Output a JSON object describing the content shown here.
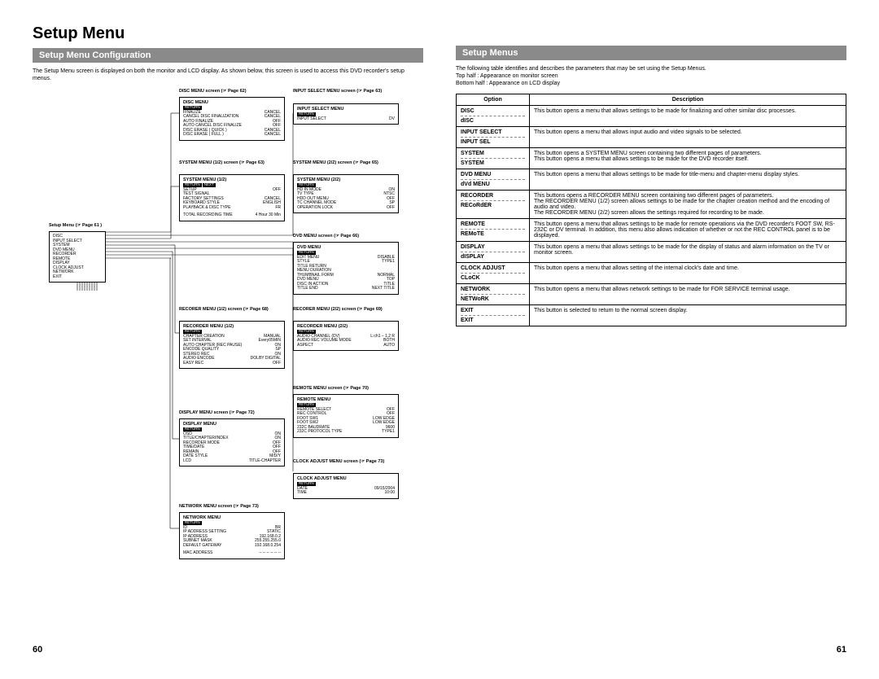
{
  "main_title": "Setup Menu",
  "left": {
    "section": "Setup Menu Configuration",
    "intro": "The Setup Menu screen is displayed on both the monitor and LCD display. As shown below, this screen is used to access this DVD recorder's setup menus.",
    "page_num": "60",
    "labels": {
      "setup": "Setup Menu (☞ Page 61 )",
      "disc": "DISC MENU screen (☞ Page 62)",
      "input_select": "INPUT SELECT MENU screen (☞ Page 63)",
      "system1": "SYSTEM MENU (1/2) screen (☞ Page 63)",
      "system2": "SYSTEM MENU (2/2) screen (☞ Page 65)",
      "dvd": "DVD MENU screen (☞ Page 66)",
      "recorder1": "RECORER MENU (1/2) screen (☞ Page 68)",
      "recorder2": "RECORER MENU (2/2) screen (☞ Page 69)",
      "remote": "REMOTE MENU screen (☞ Page 70)",
      "display": "DISPLAY MENU screen (☞ Page 72)",
      "clock": "CLOCK ADJUST MENU screen (☞ Page 73)",
      "network": "NETWORK MENU screen (☞ Page 73)"
    },
    "boxes": {
      "setup": {
        "items": [
          "DISC",
          "INPUT SELECT",
          "SYSTEM",
          "DVD MENU",
          "RECORDER",
          "REMOTE",
          "DISPLAY",
          "CLOCK ADJUST",
          "NETWORK",
          "EXIT"
        ]
      },
      "disc": {
        "title": "DISC MENU",
        "rows": [
          [
            "FINALIZE",
            "CANCEL"
          ],
          [
            "CANCEL DISC FINALIZATION",
            "CANCEL"
          ],
          [
            "AUTO FINALIZE",
            "OFF"
          ],
          [
            "AUTO CANCEL DISC FINALIZE",
            "OFF"
          ],
          [
            "DISC ERASE ( QUICK )",
            "CANCEL"
          ],
          [
            "DISC ERASE ( FULL )",
            "CANCEL"
          ]
        ]
      },
      "input_select": {
        "title": "INPUT SELECT MENU",
        "rows": [
          [
            "INPUT SELECT",
            "DV"
          ]
        ]
      },
      "system1": {
        "title": "SYSTEM MENU (1/2)",
        "rows": [
          [
            "SETUP",
            "OFF"
          ],
          [
            "TEST SIGNAL",
            ""
          ],
          [
            "FACTORY SETTINGS",
            "CANCEL"
          ],
          [
            "KEYBOARD STYLE",
            "ENGLISH"
          ],
          [
            "PLAYBACK & DISC TYPE",
            "FR"
          ]
        ],
        "footer": [
          "TOTAL RECORDING TIME",
          "4 Hour 30 Min"
        ]
      },
      "system2": {
        "title": "SYSTEM MENU (2/2)",
        "rows": [
          [
            "HD IN MODE",
            "ON"
          ],
          [
            "TV TYPE",
            "NTSC"
          ],
          [
            "HDD OUT MENU",
            "OFF"
          ],
          [
            "TC CHANNEL MODE",
            "SP"
          ],
          [
            "OPERATION LOCK",
            "OFF"
          ]
        ]
      },
      "dvd": {
        "title": "DVD MENU",
        "rows": [
          [
            "EDIT MENU",
            "DISABLE"
          ],
          [
            "STYLE",
            "TYPE1"
          ],
          [
            "TITLE RETURN",
            ""
          ],
          [
            "MENU DURATION",
            ""
          ],
          [
            "THUMBNAIL FORM",
            "NORMAL"
          ],
          [
            "DVD MENU",
            "TOP"
          ],
          [
            "DISC IN ACTION",
            "TITLE"
          ],
          [
            "TITLE END",
            "NEXT TITLE"
          ]
        ]
      },
      "recorder1": {
        "title": "RECORDER MENU (1/2)",
        "rows": [
          [
            "CHAPTER CREATION",
            "MANUAL"
          ],
          [
            "SET INTERVAL",
            "Every05MIN"
          ],
          [
            "AUTO CHAPTER (REC PAUSE)",
            "ON"
          ],
          [
            "ENCODE QUALITY",
            "SP"
          ],
          [
            "STEREO REC",
            "ON"
          ],
          [
            "AUDIO ENCODE",
            "DOLBY DIGITAL"
          ],
          [
            "EASY REC",
            "OFF"
          ]
        ]
      },
      "recorder2": {
        "title": "RECORDER MENU (2/2)",
        "rows": [
          [
            "AUDIO CHANNEL (DV)",
            "L:ch1 – 1,2 R"
          ],
          [
            "AUDIO REC VOLUME MODE",
            "BOTH"
          ],
          [
            "ASPECT",
            "AUTO"
          ]
        ]
      },
      "remote": {
        "title": "REMOTE MENU",
        "rows": [
          [
            "REMOTE SELECT",
            "OFF"
          ],
          [
            "REC CONTROL",
            "OFF"
          ],
          [
            "FOOT SW1",
            "LOW EDGE"
          ],
          [
            "FOOT SW2",
            "LOW EDGE"
          ],
          [
            "232C BAUDRATE",
            "9600"
          ],
          [
            "232C PROTOCOL TYPE",
            "TYPE1"
          ]
        ]
      },
      "display": {
        "title": "DISPLAY MENU",
        "rows": [
          [
            "OSD",
            "ON"
          ],
          [
            "TITLE/CHAPTER/INDEX",
            "ON"
          ],
          [
            "RECORDER MODE",
            "OFF"
          ],
          [
            "TIME/DATE",
            "OFF"
          ],
          [
            "REMAIN",
            "OFF"
          ],
          [
            "DATE STYLE",
            "M/D/Y"
          ],
          [
            "LCD",
            "TITLE-CHAPTER"
          ]
        ]
      },
      "clock": {
        "title": "CLOCK ADJUST MENU",
        "rows": [
          [
            "DATE",
            "09/15/2004"
          ],
          [
            "TIME",
            "10:00"
          ]
        ]
      },
      "network": {
        "title": "NETWORK MENU",
        "rows": [
          [
            "ID",
            "BR"
          ],
          [
            "IP ADDRESS SETTING",
            "STATIC"
          ],
          [
            "IP ADDRESS",
            "192.168.0.2"
          ],
          [
            "SUBNET MASK",
            "255.255.255.0"
          ],
          [
            "DEFAULT GATEWAY",
            "192.168.0.254"
          ]
        ],
        "footer": [
          "MAC ADDRESS",
          "-- -- -- -- -- --"
        ]
      }
    }
  },
  "right": {
    "section": "Setup Menus",
    "intro1": "The following table identifies and describes the parameters that may be set using the Setup Menus.",
    "intro2": "Top half       : Appearance on monitor screen",
    "intro3": "Bottom half  : Appearance on LCD display",
    "page_num": "61",
    "th_option": "Option",
    "th_desc": "Description",
    "rows": [
      {
        "opt1": "DISC",
        "opt2": "dISC",
        "desc": "This button opens a menu that allows settings to be made for finalizing and other similar disc processes."
      },
      {
        "opt1": "INPUT SELECT",
        "opt2": "INPUT SEL",
        "desc": "This button opens a menu that allows input audio and video signals to be selected."
      },
      {
        "opt1": "SYSTEM",
        "opt2": "SYSTEM",
        "desc": "This button opens a SYSTEM MENU screen containing two different pages of parameters.\nThis button opens a menu that allows settings to be made for the DVD recorder itself."
      },
      {
        "opt1": "DVD MENU",
        "opt2": "dVd MENU",
        "desc": "This button opens a menu that allows settings to be made for title-menu and chapter-menu display styles."
      },
      {
        "opt1": "RECORDER",
        "opt2": "RECoRdER",
        "desc": "This buttons opens a RECORDER MENU screen containing two different pages of parameters.\nThe RECORDER MENU (1/2) screen allows settings to be made for the chapter creation method and the encoding of audio and video.\nThe RECORDER MENU (2/2) screen allows the settings required for recording to be made."
      },
      {
        "opt1": "REMOTE",
        "opt2": "REMoTE",
        "desc": "This button opens a menu that allows settings to be made for remote operations via the DVD recorder's FOOT SW, RS-232C or DV terminal. In addition, this menu also allows indication of whether or not the REC CONTROL panel is to be displayed."
      },
      {
        "opt1": "DISPLAY",
        "opt2": "dISPLAY",
        "desc": "This button opens a menu that allows settings to be made for the display of status and alarm information on the TV or monitor screen."
      },
      {
        "opt1": "CLOCK ADJUST",
        "opt2": "CLoCK",
        "desc": "This button opens a menu that allows setting of the internal clock's date and time."
      },
      {
        "opt1": "NETWORK",
        "opt2": "NETWoRK",
        "desc": "This button opens a menu that allows network settings to be made for FOR SERVICE terminal usage."
      },
      {
        "opt1": "EXIT",
        "opt2": "EXIT",
        "desc": "This button is selected to return to the normal screen display."
      }
    ]
  },
  "colors": {
    "bar_bg": "#8a8a8a",
    "bar_fg": "#ffffff",
    "border": "#000000"
  }
}
